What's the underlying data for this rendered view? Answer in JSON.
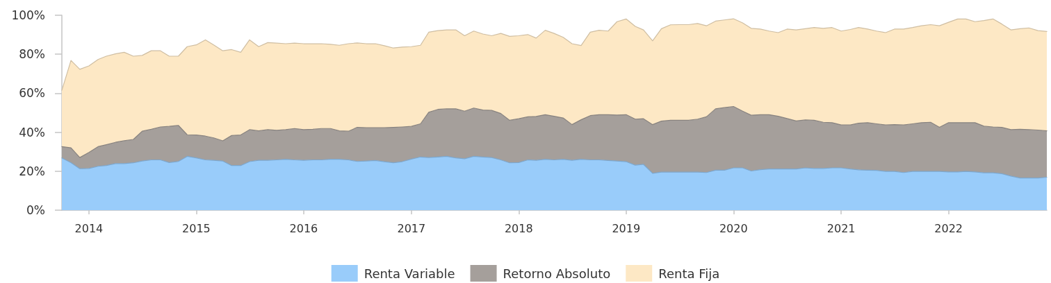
{
  "chart_data": {
    "type": "area",
    "stacked": true,
    "legend": "bottom",
    "x": [
      "2013-10",
      "2013-11",
      "2013-12",
      "2014-01",
      "2014-02",
      "2014-03",
      "2014-04",
      "2014-05",
      "2014-06",
      "2014-07",
      "2014-08",
      "2014-09",
      "2014-10",
      "2014-11",
      "2014-12",
      "2015-01",
      "2015-02",
      "2015-03",
      "2015-04",
      "2015-05",
      "2015-06",
      "2015-07",
      "2015-08",
      "2015-09",
      "2015-10",
      "2015-11",
      "2015-12",
      "2016-01",
      "2016-02",
      "2016-03",
      "2016-04",
      "2016-05",
      "2016-06",
      "2016-07",
      "2016-08",
      "2016-09",
      "2016-10",
      "2016-11",
      "2016-12",
      "2017-01",
      "2017-02",
      "2017-03",
      "2017-04",
      "2017-05",
      "2017-06",
      "2017-07",
      "2017-08",
      "2017-09",
      "2017-10",
      "2017-11",
      "2017-12",
      "2018-01",
      "2018-02",
      "2018-03",
      "2018-04",
      "2018-05",
      "2018-06",
      "2018-07",
      "2018-08",
      "2018-09",
      "2018-10",
      "2018-11",
      "2018-12",
      "2019-01",
      "2019-02",
      "2019-03",
      "2019-04",
      "2019-05",
      "2019-06",
      "2019-07",
      "2019-08",
      "2019-09",
      "2019-10",
      "2019-11",
      "2019-12",
      "2020-01",
      "2020-02",
      "2020-03",
      "2020-04",
      "2020-05",
      "2020-06",
      "2020-07",
      "2020-08",
      "2020-09",
      "2020-10",
      "2020-11",
      "2020-12",
      "2021-01",
      "2021-02",
      "2021-03",
      "2021-04",
      "2021-05",
      "2021-06",
      "2021-07",
      "2021-08",
      "2021-09",
      "2021-10",
      "2021-11",
      "2021-12",
      "2022-01",
      "2022-02",
      "2022-03",
      "2022-04",
      "2022-05",
      "2022-06",
      "2022-07",
      "2022-08",
      "2022-09",
      "2022-10",
      "2022-11",
      "2022-12"
    ],
    "series": [
      {
        "name": "Renta Variable",
        "color": "#99ccfa",
        "values": [
          26.8,
          24.4,
          21.3,
          21.4,
          22.5,
          22.9,
          23.9,
          23.9,
          24.3,
          25.2,
          25.8,
          25.8,
          24.4,
          25.0,
          27.6,
          26.8,
          25.8,
          25.6,
          25.2,
          22.9,
          22.9,
          24.9,
          25.6,
          25.6,
          25.8,
          26.1,
          25.8,
          25.6,
          25.8,
          25.8,
          26.1,
          26.1,
          25.8,
          25.0,
          25.2,
          25.5,
          24.9,
          24.3,
          24.9,
          26.2,
          27.3,
          27.0,
          27.3,
          27.6,
          26.8,
          26.4,
          27.6,
          27.3,
          27.0,
          25.8,
          24.3,
          24.4,
          25.8,
          25.6,
          26.1,
          25.8,
          26.1,
          25.6,
          26.1,
          25.8,
          25.8,
          25.5,
          25.2,
          24.9,
          23.1,
          23.5,
          18.9,
          19.5,
          19.5,
          19.5,
          19.5,
          19.5,
          19.3,
          20.5,
          20.5,
          21.7,
          21.7,
          20.1,
          20.8,
          21.1,
          21.1,
          21.1,
          21.1,
          21.7,
          21.4,
          21.4,
          21.7,
          21.7,
          21.1,
          20.7,
          20.5,
          20.4,
          19.9,
          19.9,
          19.3,
          19.9,
          19.9,
          19.9,
          19.9,
          19.6,
          19.6,
          19.9,
          19.6,
          19.2,
          19.2,
          18.7,
          17.5,
          16.5,
          16.5,
          16.5,
          16.9
        ]
      },
      {
        "name": "Retorno Absoluto",
        "color": "#a59f9b",
        "values": [
          5.8,
          7.6,
          5.7,
          8.2,
          10.1,
          10.7,
          10.9,
          11.7,
          12.0,
          15.3,
          15.7,
          16.9,
          18.6,
          18.5,
          11.1,
          11.8,
          12.2,
          11.5,
          10.4,
          15.4,
          15.7,
          16.4,
          15.1,
          15.7,
          15.2,
          15.2,
          16.1,
          15.7,
          15.7,
          16.1,
          15.8,
          14.6,
          14.7,
          17.5,
          17.1,
          16.8,
          17.4,
          18.2,
          17.8,
          16.8,
          17.0,
          23.2,
          24.4,
          24.4,
          25.2,
          24.4,
          24.8,
          24.1,
          24.2,
          23.8,
          21.8,
          22.5,
          22.1,
          22.5,
          22.9,
          22.4,
          21.2,
          18.3,
          20.3,
          22.7,
          23.2,
          23.5,
          23.6,
          24.1,
          23.6,
          23.4,
          25.0,
          26.2,
          26.6,
          26.6,
          26.6,
          27.2,
          28.6,
          31.5,
          32.1,
          31.5,
          29.1,
          28.6,
          28.2,
          27.9,
          27.1,
          25.9,
          24.7,
          24.6,
          24.7,
          23.7,
          23.2,
          22.0,
          22.6,
          23.9,
          24.4,
          23.9,
          23.8,
          24.0,
          24.4,
          24.4,
          25.0,
          25.2,
          22.6,
          25.3,
          25.3,
          25.0,
          25.3,
          23.9,
          23.5,
          23.8,
          23.8,
          25.0,
          24.8,
          24.6,
          23.8
        ]
      },
      {
        "name": "Renta Fija",
        "color": "#fde8c5",
        "values": [
          28.9,
          44.8,
          45.3,
          44.4,
          44.7,
          45.4,
          45.4,
          45.4,
          42.7,
          38.9,
          40.3,
          39.1,
          36.0,
          35.5,
          45.2,
          46.2,
          49.4,
          47.7,
          46.2,
          44.1,
          42.4,
          46.1,
          43.2,
          44.7,
          44.7,
          44.1,
          43.8,
          44.1,
          43.9,
          43.5,
          43.2,
          43.9,
          44.9,
          43.3,
          43.1,
          43.1,
          42.1,
          40.7,
          41.0,
          40.9,
          40.3,
          41.1,
          40.4,
          40.5,
          40.5,
          38.7,
          39.5,
          39.0,
          38.3,
          41.1,
          43.1,
          42.6,
          42.2,
          40.2,
          43.3,
          42.5,
          41.4,
          41.5,
          38.1,
          42.8,
          43.3,
          42.9,
          47.9,
          49.1,
          47.6,
          45.6,
          43.0,
          47.4,
          49.0,
          49.1,
          49.1,
          49.1,
          46.7,
          45.0,
          45.0,
          45.0,
          45.3,
          44.6,
          43.9,
          42.9,
          42.9,
          45.9,
          46.7,
          46.8,
          47.6,
          48.2,
          48.8,
          48.2,
          49.0,
          49.1,
          48.0,
          47.6,
          47.4,
          49.0,
          49.2,
          49.4,
          49.7,
          50.1,
          52.1,
          51.5,
          53.2,
          53.2,
          51.8,
          54.2,
          55.4,
          53.0,
          51.2,
          51.6,
          52.2,
          51.0,
          51.0
        ]
      }
    ],
    "xlim": [
      "2013-10",
      "2022-12"
    ],
    "xticks": [
      "2014",
      "2015",
      "2016",
      "2017",
      "2018",
      "2019",
      "2020",
      "2021",
      "2022"
    ],
    "ylim": [
      0,
      100
    ],
    "yticks": [
      {
        "value": 0,
        "label": "0%"
      },
      {
        "value": 20,
        "label": "20%"
      },
      {
        "value": 40,
        "label": "40%"
      },
      {
        "value": 60,
        "label": "60%"
      },
      {
        "value": 80,
        "label": "80%"
      },
      {
        "value": 100,
        "label": "100%"
      }
    ]
  }
}
